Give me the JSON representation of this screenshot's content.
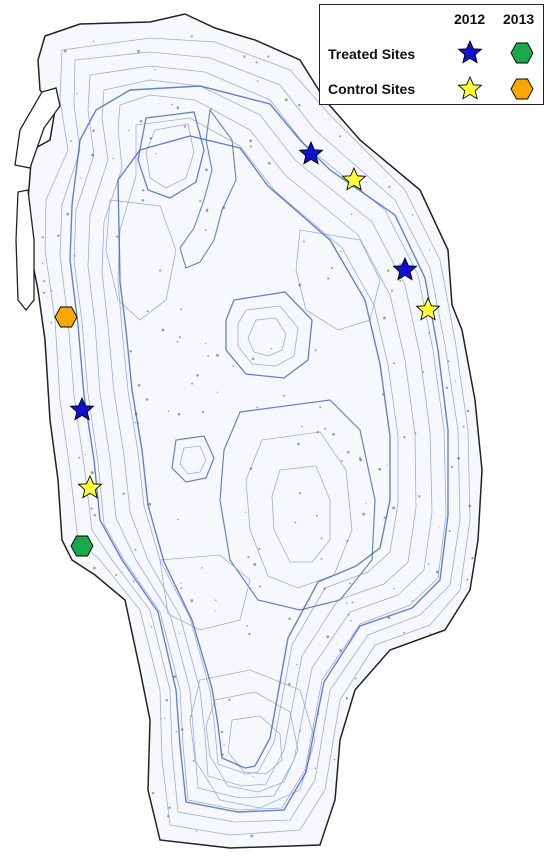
{
  "legend": {
    "years": [
      "2012",
      "2013"
    ],
    "rows": [
      {
        "label": "Treated Sites",
        "symbol_2012": "blue-star-icon",
        "symbol_2013": "green-hexagon-icon"
      },
      {
        "label": "Control Sites",
        "symbol_2012": "yellow-star-icon",
        "symbol_2013": "orange-hexagon-icon"
      }
    ]
  },
  "colors": {
    "treated_2012": "#1010d0",
    "treated_2013": "#1aa84a",
    "control_2012": "#ffff33",
    "control_2013": "#f7a800",
    "contour": "#6f8fcf",
    "contour_dark": "#3a60b8",
    "shoreline": "#222222"
  },
  "sites": [
    {
      "group": "Treated Sites",
      "year": "2012",
      "symbol": "blue-star-icon"
    },
    {
      "group": "Treated Sites",
      "year": "2012",
      "symbol": "blue-star-icon"
    },
    {
      "group": "Treated Sites",
      "year": "2012",
      "symbol": "blue-star-icon"
    },
    {
      "group": "Control Sites",
      "year": "2012",
      "symbol": "yellow-star-icon"
    },
    {
      "group": "Control Sites",
      "year": "2012",
      "symbol": "yellow-star-icon"
    },
    {
      "group": "Control Sites",
      "year": "2012",
      "symbol": "yellow-star-icon"
    },
    {
      "group": "Treated Sites",
      "year": "2013",
      "symbol": "green-hexagon-icon"
    },
    {
      "group": "Control Sites",
      "year": "2013",
      "symbol": "orange-hexagon-icon"
    }
  ]
}
